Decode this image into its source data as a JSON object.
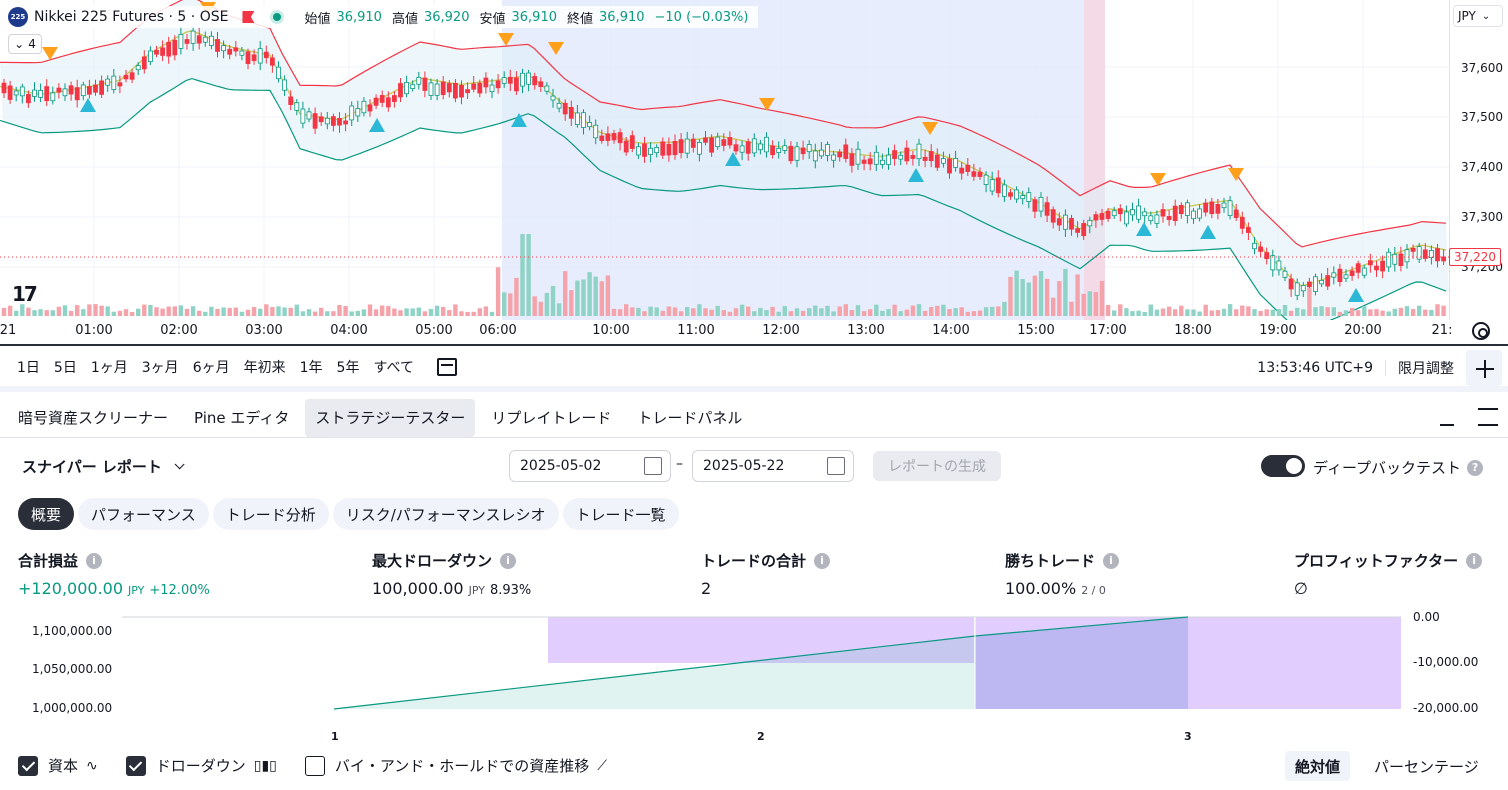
{
  "symbol": {
    "badge": "225",
    "title": "Nikkei 225 Futures · 5 · OSE",
    "ohlc": [
      {
        "label": "始値",
        "value": "36,910"
      },
      {
        "label": "高値",
        "value": "36,920"
      },
      {
        "label": "安値",
        "value": "36,910"
      },
      {
        "label": "終値",
        "value": "36,910"
      }
    ],
    "change": "−10 (−0.03%)",
    "indicator_count": "4"
  },
  "price_axis": {
    "currency": "JPY",
    "ticks": [
      "37,600",
      "37,500",
      "37,400",
      "37,300",
      "37,200"
    ],
    "last_price": "37,220"
  },
  "time_axis": {
    "labels": [
      "21",
      "01:00",
      "02:00",
      "03:00",
      "04:00",
      "05:00",
      "06:00",
      "10:00",
      "11:00",
      "12:00",
      "13:00",
      "14:00",
      "15:00",
      "17:00",
      "18:00",
      "19:00",
      "20:00",
      "21:"
    ]
  },
  "colors": {
    "up": "#089981",
    "down": "#f23645",
    "upper_band": "#f23645",
    "lower_band": "#089981",
    "basis": "#c9c95a",
    "session": "#dfe7fb",
    "buy_marker": "#2bb8d6",
    "sell_marker": "#ff9f1a"
  },
  "range_bar": {
    "ranges": [
      "1日",
      "5日",
      "1ヶ月",
      "3ヶ月",
      "6ヶ月",
      "年初来",
      "1年",
      "5年",
      "すべて"
    ],
    "clock": "13:53:46 UTC+9",
    "adjust": "限月調整"
  },
  "panel_tabs": [
    "暗号資産スクリーナー",
    "Pine エディタ",
    "ストラテジーテスター",
    "リプレイトレード",
    "トレードパネル"
  ],
  "tester": {
    "report_title": "スナイパー レポート",
    "date_from": "2025-05-02",
    "date_to": "2025-05-22",
    "date_dash": "–",
    "generate": "レポートの生成",
    "deep_backtest": "ディープバックテスト",
    "sub_tabs": [
      "概要",
      "パフォーマンス",
      "トレード分析",
      "リスク/パフォーマンスレシオ",
      "トレード一覧"
    ],
    "metrics": [
      {
        "label": "合計損益",
        "value": "+120,000.00",
        "unit": "JPY",
        "extra": "+12.00%"
      },
      {
        "label": "最大ドローダウン",
        "value": "100,000.00",
        "unit": "JPY",
        "extra": "8.93%"
      },
      {
        "label": "トレードの合計",
        "value": "2",
        "unit": "",
        "extra": ""
      },
      {
        "label": "勝ちトレード",
        "value": "100.00%",
        "unit": "2 / 0",
        "extra": ""
      },
      {
        "label": "プロフィットファクター",
        "value": "∅",
        "unit": "",
        "extra": ""
      }
    ],
    "equity_chart": {
      "left_ticks": [
        "1,100,000.00",
        "1,050,000.00",
        "1,000,000.00"
      ],
      "right_ticks": [
        "0.00",
        "-10,000.00",
        "-20,000.00"
      ],
      "x_ticks": [
        "1",
        "2",
        "3"
      ],
      "equity_color": "#089981",
      "drawdown_color": "#dcc6ff"
    },
    "legend": {
      "equity": "資本",
      "drawdown": "ドローダウン",
      "buy_hold": "バイ・アンド・ホールドでの資産推移",
      "absolute": "絶対値",
      "percentage": "パーセンテージ"
    }
  }
}
